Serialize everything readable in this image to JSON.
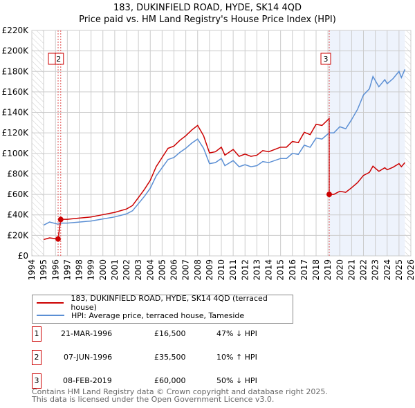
{
  "chart_data": {
    "type": "line",
    "title": "183, DUKINFIELD ROAD, HYDE, SK14 4QD",
    "subtitle": "Price paid vs. HM Land Registry's House Price Index (HPI)",
    "xlim": [
      1994,
      2026
    ],
    "ylim": [
      0,
      220000
    ],
    "x_ticks": [
      "1994",
      "1995",
      "1996",
      "1997",
      "1998",
      "1999",
      "2000",
      "2001",
      "2002",
      "2003",
      "2004",
      "2005",
      "2006",
      "2007",
      "2008",
      "2009",
      "2010",
      "2011",
      "2012",
      "2013",
      "2014",
      "2015",
      "2016",
      "2017",
      "2018",
      "2019",
      "2020",
      "2021",
      "2022",
      "2023",
      "2024",
      "2025",
      "2026"
    ],
    "y_ticks": [
      "£0",
      "£20K",
      "£40K",
      "£60K",
      "£80K",
      "£100K",
      "£120K",
      "£140K",
      "£160K",
      "£180K",
      "£200K",
      "£220K"
    ],
    "grid": true,
    "series": [
      {
        "name": "183, DUKINFIELD ROAD, HYDE, SK14 4QD (terraced house)",
        "color": "#cc0000",
        "note": "price paid indexed by HPI from each sale"
      },
      {
        "name": "HPI: Average price, terraced house, Tameside",
        "color": "#5b8fd4",
        "x": [
          1995,
          1995.5,
          1996.2,
          1996.5,
          1997,
          1998,
          1999,
          2000,
          2001,
          2002,
          2002.5,
          2003,
          2003.5,
          2004,
          2004.5,
          2005,
          2005.5,
          2006,
          2006.5,
          2007,
          2007.5,
          2008,
          2008.5,
          2009,
          2009.5,
          2010,
          2010.3,
          2011,
          2011.5,
          2012,
          2012.5,
          2013,
          2013.5,
          2014,
          2015,
          2015.5,
          2016,
          2016.5,
          2017,
          2017.5,
          2018,
          2018.5,
          2019.1,
          2019.5,
          2020,
          2020.5,
          2021,
          2021.5,
          2022,
          2022.5,
          2022.8,
          2023.3,
          2023.8,
          2024,
          2024.5,
          2025,
          2025.2,
          2025.5
        ],
        "y": [
          30000,
          33000,
          31000,
          32000,
          32000,
          33000,
          34000,
          36000,
          38000,
          41000,
          44000,
          51000,
          58000,
          66000,
          78000,
          86000,
          94000,
          96000,
          101000,
          105000,
          110000,
          114000,
          105000,
          90000,
          91000,
          95000,
          88000,
          93000,
          87000,
          89000,
          87000,
          88000,
          92000,
          91000,
          95000,
          95000,
          100000,
          99000,
          108000,
          106000,
          115000,
          114000,
          120000,
          120000,
          126000,
          124000,
          133000,
          143000,
          157000,
          163000,
          175000,
          165000,
          172000,
          168000,
          173000,
          180000,
          174000,
          182000
        ]
      }
    ],
    "sales": [
      {
        "id": "1",
        "x": 1996.22,
        "price": 16500,
        "date": "21-MAR-1996",
        "price_label": "£16,500",
        "hpi": "47% ↓ HPI"
      },
      {
        "id": "2",
        "x": 1996.44,
        "price": 35500,
        "date": "07-JUN-1996",
        "price_label": "£35,500",
        "hpi": "10% ↑ HPI"
      },
      {
        "id": "3",
        "x": 2019.11,
        "price": 60000,
        "date": "08-FEB-2019",
        "price_label": "£60,000",
        "hpi": "50% ↓ HPI"
      }
    ],
    "data_end": 2025.5
  },
  "footer": {
    "line1": "Contains HM Land Registry data © Crown copyright and database right 2025.",
    "line2": "This data is licensed under the Open Government Licence v3.0."
  }
}
